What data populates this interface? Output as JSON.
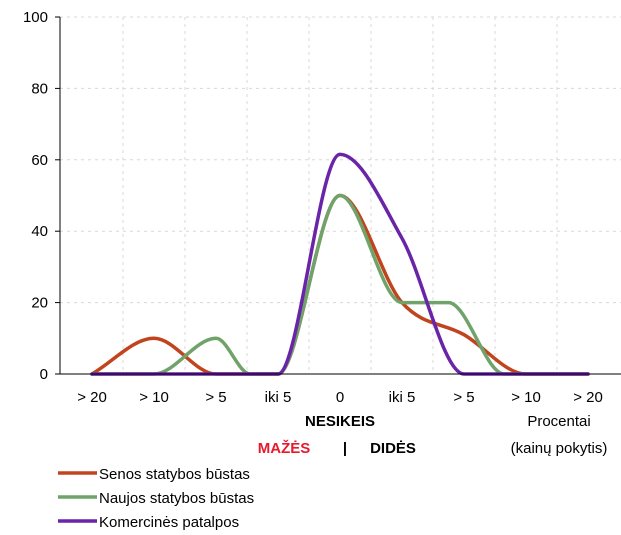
{
  "chart_data": {
    "type": "line",
    "x_categories": [
      "> 20",
      "> 10",
      "> 5",
      "iki 5",
      "0",
      "iki 5",
      "> 5",
      "> 10",
      "> 20"
    ],
    "ylim": [
      0,
      100
    ],
    "y_ticks": [
      "0",
      "20",
      "40",
      "60",
      "80",
      "100"
    ],
    "grid": true,
    "series": [
      {
        "name": "Senos statybos būstas",
        "color": "#c0451e",
        "points": [
          [
            0,
            0
          ],
          [
            1,
            10
          ],
          [
            2,
            0
          ],
          [
            3,
            0
          ],
          [
            4,
            50
          ],
          [
            5,
            20
          ],
          [
            6,
            11
          ],
          [
            7,
            0
          ],
          [
            8,
            0
          ]
        ]
      },
      {
        "name": "Naujos statybos būstas",
        "color": "#6fa36a",
        "points": [
          [
            0,
            0
          ],
          [
            1,
            0
          ],
          [
            2,
            10
          ],
          [
            2.55,
            0
          ],
          [
            3,
            0
          ],
          [
            4,
            50
          ],
          [
            5,
            20
          ],
          [
            5.75,
            20
          ],
          [
            6.65,
            0
          ],
          [
            8,
            0
          ]
        ]
      },
      {
        "name": "Komercinės patalpos",
        "color": "#6a24a8",
        "points": [
          [
            0,
            0
          ],
          [
            1,
            0
          ],
          [
            2,
            0
          ],
          [
            3,
            0
          ],
          [
            4,
            61.5
          ],
          [
            5,
            38
          ],
          [
            6,
            0
          ],
          [
            7,
            0
          ],
          [
            8,
            0
          ]
        ]
      }
    ],
    "center_label": "NESIKEIS",
    "down_label": "MAŽĖS",
    "separator": "|",
    "up_label": "DIDĖS",
    "unit_line1": "Procentai",
    "unit_line2": "(kainų pokytis)"
  },
  "colors": {
    "down": "#e8192c",
    "axis": "#000000",
    "grid": "#d8d8d8"
  }
}
